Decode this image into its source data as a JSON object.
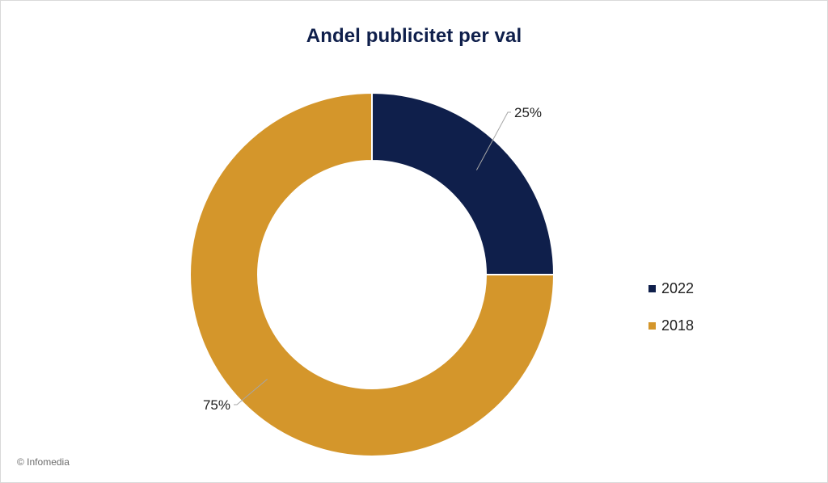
{
  "chart_data": {
    "type": "pie",
    "variant": "donut",
    "title": "Andel publicitet per val",
    "categories": [
      "2022",
      "2018"
    ],
    "values": [
      25,
      75
    ],
    "value_labels": [
      "25%",
      "75%"
    ],
    "colors": [
      "#0f1f4b",
      "#d4962b"
    ],
    "legend": {
      "placement": "right",
      "entries": [
        "2022",
        "2018"
      ]
    }
  },
  "footer": {
    "copyright": "© Infomedia"
  }
}
